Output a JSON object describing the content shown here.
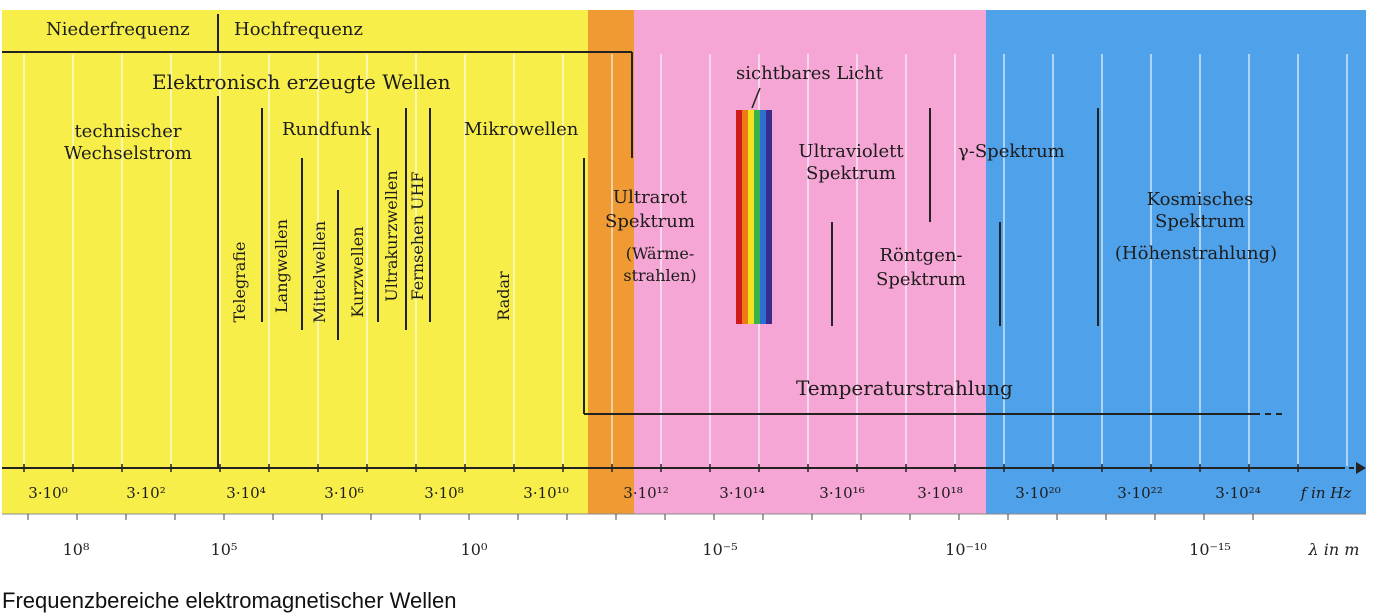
{
  "header": {
    "niederfrequenz": "Niederfrequenz",
    "hochfrequenz": "Hochfrequenz",
    "elektronisch": "Elektronisch erzeugte Wellen"
  },
  "regions": {
    "wechselstrom_1": "technischer",
    "wechselstrom_2": "Wechselstrom",
    "rundfunk": "Rundfunk",
    "mikrowellen": "Mikrowellen",
    "telegrafie": "Telegrafie",
    "langwellen": "Langwellen",
    "mittelwellen": "Mittelwellen",
    "kurzwellen": "Kurzwellen",
    "ultrakurzwellen": "Ultrakurzwellen",
    "fernsehen": "Fernsehen UHF",
    "radar": "Radar",
    "ultrarot_1": "Ultrarot",
    "ultrarot_2": "Spektrum",
    "ultrarot_3": "(Wärme-",
    "ultrarot_4": "strahlen)",
    "licht": "sichtbares Licht",
    "uv_1": "Ultraviolett",
    "uv_2": "Spektrum",
    "roentgen_1": "Röntgen-",
    "roentgen_2": "Spektrum",
    "gamma": "γ-Spektrum",
    "kosmisch_1": "Kosmisches",
    "kosmisch_2": "Spektrum",
    "kosmisch_3": "(Höhenstrahlung)",
    "temperatur": "Temperaturstrahlung"
  },
  "frequency_axis": {
    "ticks": [
      "3·10⁰",
      "3·10²",
      "3·10⁴",
      "3·10⁶",
      "3·10⁸",
      "3·10¹⁰",
      "3·10¹²",
      "3·10¹⁴",
      "3·10¹⁶",
      "3·10¹⁸",
      "3·10²⁰",
      "3·10²²",
      "3·10²⁴"
    ],
    "unit": "f in Hz"
  },
  "wavelength_axis": {
    "ticks": [
      "10⁸",
      "10⁵",
      "10⁰",
      "10⁻⁵",
      "10⁻¹⁰",
      "10⁻¹⁵"
    ],
    "unit": "λ in m"
  },
  "colors": {
    "yellow": "#f8ee4a",
    "orange": "#ef9a33",
    "pink": "#f5a6d4",
    "blue": "#4fa1ea"
  },
  "caption": "Frequenzbereiche elektromagnetischer Wellen"
}
